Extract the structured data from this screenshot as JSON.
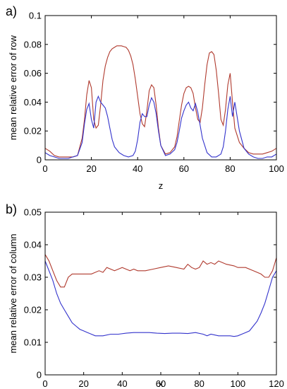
{
  "chart_data": [
    {
      "type": "line",
      "panel_label": "a)",
      "xlabel": "z",
      "ylabel": "mean relative error of row",
      "xlim": [
        0,
        100
      ],
      "ylim": [
        0,
        0.1
      ],
      "xticks": [
        0,
        20,
        40,
        60,
        80,
        100
      ],
      "yticks": [
        0,
        0.02,
        0.04,
        0.06,
        0.08,
        0.1
      ],
      "ytick_labels": [
        "0",
        "0.02",
        "0.04",
        "0.06",
        "0.08",
        "0.1"
      ],
      "grid": false,
      "series": [
        {
          "color": "#b03a2e",
          "x": [
            0,
            2,
            4,
            6,
            8,
            10,
            12,
            14,
            16,
            17,
            18,
            19,
            20,
            21,
            22,
            23,
            24,
            25,
            26,
            27,
            28,
            29,
            30,
            31,
            32,
            33,
            34,
            35,
            36,
            37,
            38,
            39,
            40,
            41,
            42,
            43,
            44,
            45,
            46,
            47,
            48,
            49,
            50,
            52,
            54,
            56,
            57,
            58,
            59,
            60,
            61,
            62,
            63,
            64,
            65,
            66,
            67,
            68,
            69,
            70,
            71,
            72,
            73,
            74,
            75,
            76,
            77,
            78,
            79,
            80,
            81,
            82,
            84,
            86,
            88,
            90,
            92,
            94,
            96,
            98,
            100
          ],
          "y": [
            0.008,
            0.006,
            0.003,
            0.002,
            0.002,
            0.002,
            0.002,
            0.003,
            0.015,
            0.028,
            0.045,
            0.055,
            0.05,
            0.028,
            0.022,
            0.024,
            0.038,
            0.055,
            0.065,
            0.071,
            0.075,
            0.077,
            0.078,
            0.079,
            0.079,
            0.079,
            0.0785,
            0.078,
            0.076,
            0.072,
            0.066,
            0.056,
            0.044,
            0.032,
            0.025,
            0.023,
            0.034,
            0.048,
            0.052,
            0.05,
            0.038,
            0.022,
            0.01,
            0.004,
            0.005,
            0.009,
            0.016,
            0.027,
            0.038,
            0.046,
            0.05,
            0.051,
            0.05,
            0.046,
            0.036,
            0.028,
            0.026,
            0.036,
            0.052,
            0.066,
            0.074,
            0.075,
            0.073,
            0.062,
            0.046,
            0.028,
            0.024,
            0.035,
            0.052,
            0.06,
            0.04,
            0.022,
            0.012,
            0.008,
            0.005,
            0.004,
            0.004,
            0.004,
            0.005,
            0.006,
            0.008
          ]
        },
        {
          "color": "#3333cc",
          "x": [
            0,
            2,
            4,
            6,
            8,
            10,
            12,
            14,
            16,
            17,
            18,
            19,
            20,
            21,
            22,
            23,
            24,
            25,
            26,
            27,
            28,
            29,
            30,
            32,
            34,
            36,
            38,
            39,
            40,
            41,
            42,
            43,
            44,
            45,
            46,
            47,
            48,
            49,
            50,
            52,
            54,
            56,
            57,
            58,
            59,
            60,
            61,
            62,
            63,
            64,
            65,
            66,
            67,
            68,
            70,
            72,
            74,
            76,
            77,
            78,
            79,
            80,
            81,
            82,
            84,
            86,
            88,
            90,
            92,
            94,
            96,
            98,
            100
          ],
          "y": [
            0.005,
            0.003,
            0.002,
            0.001,
            0.001,
            0.001,
            0.002,
            0.003,
            0.012,
            0.025,
            0.035,
            0.039,
            0.028,
            0.022,
            0.04,
            0.044,
            0.04,
            0.038,
            0.036,
            0.03,
            0.022,
            0.014,
            0.009,
            0.005,
            0.003,
            0.002,
            0.003,
            0.006,
            0.014,
            0.026,
            0.032,
            0.03,
            0.03,
            0.038,
            0.043,
            0.04,
            0.032,
            0.02,
            0.01,
            0.003,
            0.004,
            0.007,
            0.012,
            0.02,
            0.029,
            0.034,
            0.038,
            0.04,
            0.036,
            0.034,
            0.039,
            0.033,
            0.024,
            0.015,
            0.005,
            0.002,
            0.002,
            0.004,
            0.009,
            0.02,
            0.035,
            0.044,
            0.03,
            0.04,
            0.02,
            0.008,
            0.004,
            0.002,
            0.001,
            0.001,
            0.002,
            0.002,
            0.004
          ]
        }
      ]
    },
    {
      "type": "line",
      "panel_label": "b)",
      "xlabel": "x",
      "ylabel": "mean relative error of column",
      "xlim": [
        0,
        120
      ],
      "ylim": [
        0,
        0.05
      ],
      "xticks": [
        0,
        20,
        40,
        60,
        80,
        100,
        120
      ],
      "yticks": [
        0,
        0.01,
        0.02,
        0.03,
        0.04,
        0.05
      ],
      "ytick_labels": [
        "0",
        "0.01",
        "0.02",
        "0.03",
        "0.04",
        "0.05"
      ],
      "grid": false,
      "series": [
        {
          "color": "#b03a2e",
          "x": [
            0,
            2,
            4,
            6,
            8,
            10,
            12,
            14,
            16,
            20,
            24,
            28,
            30,
            32,
            36,
            40,
            44,
            46,
            48,
            52,
            56,
            60,
            64,
            68,
            72,
            74,
            76,
            78,
            80,
            82,
            84,
            86,
            88,
            90,
            94,
            98,
            100,
            104,
            108,
            112,
            114,
            116,
            118,
            120
          ],
          "y": [
            0.037,
            0.035,
            0.032,
            0.029,
            0.027,
            0.027,
            0.03,
            0.031,
            0.031,
            0.031,
            0.031,
            0.032,
            0.0315,
            0.033,
            0.032,
            0.033,
            0.032,
            0.0325,
            0.032,
            0.032,
            0.0325,
            0.033,
            0.0335,
            0.033,
            0.0325,
            0.034,
            0.033,
            0.0325,
            0.033,
            0.035,
            0.034,
            0.0345,
            0.034,
            0.035,
            0.034,
            0.0335,
            0.033,
            0.033,
            0.032,
            0.031,
            0.03,
            0.03,
            0.032,
            0.036
          ]
        },
        {
          "color": "#3333cc",
          "x": [
            0,
            2,
            4,
            6,
            8,
            10,
            12,
            14,
            16,
            18,
            20,
            22,
            24,
            26,
            28,
            30,
            34,
            38,
            42,
            46,
            50,
            54,
            58,
            62,
            66,
            70,
            74,
            78,
            82,
            84,
            86,
            90,
            94,
            96,
            98,
            100,
            102,
            104,
            106,
            108,
            110,
            112,
            114,
            116,
            118,
            120
          ],
          "y": [
            0.035,
            0.032,
            0.029,
            0.025,
            0.022,
            0.02,
            0.018,
            0.016,
            0.015,
            0.014,
            0.0135,
            0.013,
            0.0125,
            0.012,
            0.012,
            0.012,
            0.0125,
            0.0125,
            0.0128,
            0.013,
            0.013,
            0.013,
            0.0128,
            0.0127,
            0.0128,
            0.0128,
            0.0127,
            0.013,
            0.0125,
            0.012,
            0.0125,
            0.012,
            0.012,
            0.012,
            0.0118,
            0.012,
            0.0125,
            0.013,
            0.0135,
            0.015,
            0.0165,
            0.019,
            0.022,
            0.026,
            0.03,
            0.032
          ]
        }
      ]
    }
  ]
}
